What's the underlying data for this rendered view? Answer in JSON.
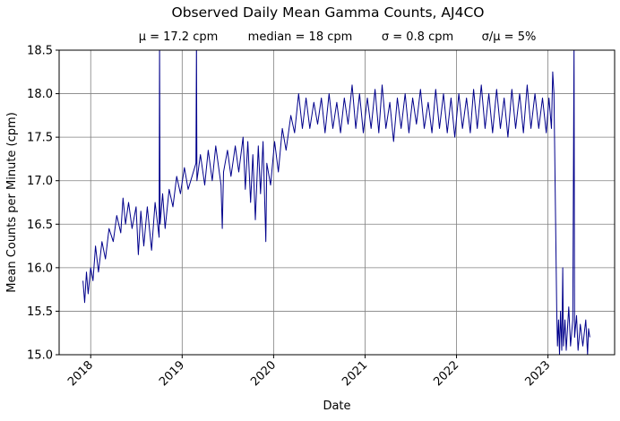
{
  "chart_data": {
    "type": "line",
    "title": "Observed Daily Mean Gamma Counts, AJ4CO",
    "subtitle": [
      "μ = 17.2 cpm",
      "median = 18 cpm",
      "σ = 0.8 cpm",
      "σ/μ = 5%"
    ],
    "xlabel": "Date",
    "ylabel": "Mean Counts per Minute (cpm)",
    "xlim": [
      "2017-08-28",
      "2023-09-24"
    ],
    "ylim": [
      15.0,
      18.5
    ],
    "xticks": [
      "2018",
      "2019",
      "2020",
      "2021",
      "2022",
      "2023"
    ],
    "yticks": [
      "15.0",
      "15.5",
      "16.0",
      "16.5",
      "17.0",
      "17.5",
      "18.0",
      "18.5"
    ],
    "grid": true,
    "line_color": "#00008b",
    "series": [
      {
        "points": [
          [
            "2017-12-01",
            15.85
          ],
          [
            "2017-12-08",
            15.6
          ],
          [
            "2017-12-15",
            15.95
          ],
          [
            "2017-12-22",
            15.7
          ],
          [
            "2018-01-01",
            16.0
          ],
          [
            "2018-01-10",
            15.85
          ],
          [
            "2018-01-20",
            16.25
          ],
          [
            "2018-02-01",
            15.95
          ],
          [
            "2018-02-15",
            16.3
          ],
          [
            "2018-03-01",
            16.1
          ],
          [
            "2018-03-15",
            16.45
          ],
          [
            "2018-04-01",
            16.3
          ],
          [
            "2018-04-15",
            16.6
          ],
          [
            "2018-05-01",
            16.4
          ],
          [
            "2018-05-10",
            16.8
          ],
          [
            "2018-05-20",
            16.5
          ],
          [
            "2018-06-01",
            16.75
          ],
          [
            "2018-06-15",
            16.45
          ],
          [
            "2018-07-01",
            16.7
          ],
          [
            "2018-07-10",
            16.15
          ],
          [
            "2018-07-20",
            16.65
          ],
          [
            "2018-08-01",
            16.25
          ],
          [
            "2018-08-15",
            16.7
          ],
          [
            "2018-09-01",
            16.2
          ],
          [
            "2018-09-15",
            16.75
          ],
          [
            "2018-10-01",
            16.35
          ],
          [
            "2018-10-03",
            18.6
          ],
          [
            "2018-10-05",
            16.5
          ],
          [
            "2018-10-15",
            16.85
          ],
          [
            "2018-10-25",
            16.45
          ],
          [
            "2018-11-10",
            16.9
          ],
          [
            "2018-11-25",
            16.7
          ],
          [
            "2018-12-10",
            17.05
          ],
          [
            "2018-12-25",
            16.85
          ],
          [
            "2019-01-10",
            17.15
          ],
          [
            "2019-01-25",
            16.9
          ],
          [
            "2019-02-25",
            17.2
          ],
          [
            "2019-02-27",
            18.6
          ],
          [
            "2019-03-01",
            17.0
          ],
          [
            "2019-03-15",
            17.3
          ],
          [
            "2019-04-01",
            16.95
          ],
          [
            "2019-04-15",
            17.35
          ],
          [
            "2019-05-01",
            17.0
          ],
          [
            "2019-05-15",
            17.4
          ],
          [
            "2019-06-05",
            16.95
          ],
          [
            "2019-06-10",
            16.45
          ],
          [
            "2019-06-15",
            17.1
          ],
          [
            "2019-07-01",
            17.35
          ],
          [
            "2019-07-15",
            17.05
          ],
          [
            "2019-08-01",
            17.4
          ],
          [
            "2019-08-15",
            17.1
          ],
          [
            "2019-09-01",
            17.5
          ],
          [
            "2019-09-10",
            16.9
          ],
          [
            "2019-09-20",
            17.45
          ],
          [
            "2019-10-01",
            16.75
          ],
          [
            "2019-10-10",
            17.3
          ],
          [
            "2019-10-20",
            16.55
          ],
          [
            "2019-11-01",
            17.4
          ],
          [
            "2019-11-10",
            16.85
          ],
          [
            "2019-11-20",
            17.45
          ],
          [
            "2019-12-01",
            16.3
          ],
          [
            "2019-12-05",
            17.2
          ],
          [
            "2019-12-20",
            16.95
          ],
          [
            "2020-01-05",
            17.45
          ],
          [
            "2020-01-20",
            17.1
          ],
          [
            "2020-02-05",
            17.6
          ],
          [
            "2020-02-20",
            17.35
          ],
          [
            "2020-03-10",
            17.75
          ],
          [
            "2020-03-25",
            17.55
          ],
          [
            "2020-04-10",
            18.0
          ],
          [
            "2020-04-25",
            17.6
          ],
          [
            "2020-05-10",
            17.95
          ],
          [
            "2020-05-25",
            17.6
          ],
          [
            "2020-06-10",
            17.9
          ],
          [
            "2020-06-25",
            17.65
          ],
          [
            "2020-07-10",
            17.95
          ],
          [
            "2020-07-25",
            17.55
          ],
          [
            "2020-08-10",
            18.0
          ],
          [
            "2020-08-25",
            17.6
          ],
          [
            "2020-09-10",
            17.9
          ],
          [
            "2020-09-25",
            17.55
          ],
          [
            "2020-10-10",
            17.95
          ],
          [
            "2020-10-25",
            17.65
          ],
          [
            "2020-11-10",
            18.1
          ],
          [
            "2020-11-25",
            17.6
          ],
          [
            "2020-12-10",
            18.0
          ],
          [
            "2020-12-25",
            17.55
          ],
          [
            "2021-01-10",
            17.95
          ],
          [
            "2021-01-25",
            17.6
          ],
          [
            "2021-02-10",
            18.05
          ],
          [
            "2021-02-25",
            17.55
          ],
          [
            "2021-03-10",
            18.1
          ],
          [
            "2021-03-25",
            17.6
          ],
          [
            "2021-04-10",
            17.9
          ],
          [
            "2021-04-25",
            17.45
          ],
          [
            "2021-05-10",
            17.95
          ],
          [
            "2021-05-25",
            17.6
          ],
          [
            "2021-06-10",
            18.0
          ],
          [
            "2021-06-25",
            17.55
          ],
          [
            "2021-07-10",
            17.95
          ],
          [
            "2021-07-25",
            17.65
          ],
          [
            "2021-08-10",
            18.05
          ],
          [
            "2021-08-25",
            17.6
          ],
          [
            "2021-09-10",
            17.9
          ],
          [
            "2021-09-25",
            17.55
          ],
          [
            "2021-10-10",
            18.05
          ],
          [
            "2021-10-25",
            17.6
          ],
          [
            "2021-11-10",
            18.0
          ],
          [
            "2021-11-25",
            17.55
          ],
          [
            "2021-12-10",
            17.95
          ],
          [
            "2021-12-25",
            17.5
          ],
          [
            "2022-01-10",
            18.0
          ],
          [
            "2022-01-25",
            17.6
          ],
          [
            "2022-02-10",
            17.95
          ],
          [
            "2022-02-25",
            17.55
          ],
          [
            "2022-03-10",
            18.05
          ],
          [
            "2022-03-25",
            17.6
          ],
          [
            "2022-04-10",
            18.1
          ],
          [
            "2022-04-25",
            17.6
          ],
          [
            "2022-05-10",
            18.0
          ],
          [
            "2022-05-25",
            17.55
          ],
          [
            "2022-06-10",
            18.05
          ],
          [
            "2022-06-25",
            17.6
          ],
          [
            "2022-07-10",
            17.95
          ],
          [
            "2022-07-25",
            17.5
          ],
          [
            "2022-08-10",
            18.05
          ],
          [
            "2022-08-25",
            17.6
          ],
          [
            "2022-09-10",
            18.0
          ],
          [
            "2022-09-25",
            17.55
          ],
          [
            "2022-10-10",
            18.1
          ],
          [
            "2022-10-25",
            17.6
          ],
          [
            "2022-11-10",
            18.0
          ],
          [
            "2022-11-25",
            17.6
          ],
          [
            "2022-12-10",
            17.95
          ],
          [
            "2022-12-25",
            17.55
          ],
          [
            "2023-01-05",
            17.95
          ],
          [
            "2023-01-15",
            17.6
          ],
          [
            "2023-01-20",
            18.25
          ],
          [
            "2023-01-25",
            18.0
          ],
          [
            "2023-02-05",
            15.5
          ],
          [
            "2023-02-08",
            15.1
          ],
          [
            "2023-02-12",
            15.4
          ],
          [
            "2023-02-16",
            15.0
          ],
          [
            "2023-02-20",
            15.5
          ],
          [
            "2023-02-25",
            15.05
          ],
          [
            "2023-03-01",
            16.0
          ],
          [
            "2023-03-04",
            15.1
          ],
          [
            "2023-03-10",
            15.4
          ],
          [
            "2023-03-15",
            15.05
          ],
          [
            "2023-03-20",
            15.3
          ],
          [
            "2023-03-25",
            15.55
          ],
          [
            "2023-04-01",
            15.1
          ],
          [
            "2023-04-10",
            15.4
          ],
          [
            "2023-04-15",
            18.6
          ],
          [
            "2023-04-17",
            15.2
          ],
          [
            "2023-04-25",
            15.45
          ],
          [
            "2023-05-01",
            15.05
          ],
          [
            "2023-05-10",
            15.35
          ],
          [
            "2023-05-20",
            15.1
          ],
          [
            "2023-06-01",
            15.4
          ],
          [
            "2023-06-08",
            15.0
          ],
          [
            "2023-06-12",
            15.3
          ],
          [
            "2023-06-17",
            15.2
          ]
        ]
      }
    ]
  }
}
